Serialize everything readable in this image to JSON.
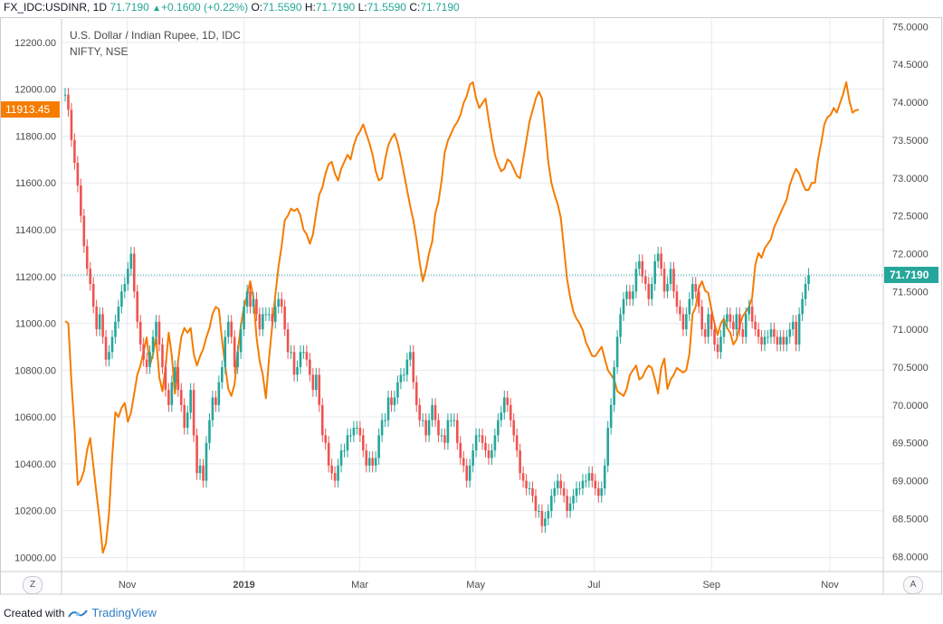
{
  "header": {
    "symbol": "FX_IDC:USDINR, 1D",
    "last": "71.7190",
    "change": "+0.1600 (+0.22%)",
    "o_label": "O:",
    "o_value": "71.5590",
    "h_label": "H:",
    "h_value": "71.7190",
    "l_label": "L:",
    "l_value": "71.5590",
    "c_label": "C:",
    "c_value": "71.7190"
  },
  "footer": {
    "created_with": "Created with",
    "brand": "TradingView"
  },
  "buttons": {
    "left": "Z",
    "right": "A"
  },
  "colors": {
    "up": "#26a69a",
    "down": "#ef5350",
    "overlay": "#f57c00",
    "grid": "#e6eaf0",
    "price_line": "#26a69a"
  },
  "chart_data": {
    "type": "line",
    "title": "U.S. Dollar / Indian Rupee, 1D, IDC",
    "subtitle": "NIFTY, NSE",
    "x_tick_labels": [
      "Nov",
      "2019",
      "Mar",
      "May",
      "Jul",
      "Sep",
      "Nov"
    ],
    "left_axis": {
      "ticks": [
        "12200.00",
        "12000.00",
        "11800.00",
        "11600.00",
        "11400.00",
        "11200.00",
        "11000.00",
        "10800.00",
        "10600.00",
        "10400.00",
        "10200.00",
        "10000.00"
      ],
      "range": [
        9940,
        12300
      ],
      "current_label": "11913.45"
    },
    "right_axis": {
      "ticks": [
        "75.0000",
        "74.5000",
        "74.0000",
        "73.5000",
        "73.0000",
        "72.5000",
        "72.0000",
        "71.5000",
        "71.0000",
        "70.5000",
        "70.0000",
        "69.5000",
        "69.0000",
        "68.5000",
        "68.0000"
      ],
      "range": [
        67.8,
        75.1
      ],
      "current_label": "71.7190"
    },
    "series": [
      {
        "name": "NIFTY, NSE",
        "axis": "left",
        "values": [
          11010,
          11000,
          10750,
          10550,
          10310,
          10330,
          10370,
          10460,
          10510,
          10390,
          10270,
          10160,
          10020,
          10060,
          10190,
          10430,
          10620,
          10600,
          10640,
          10660,
          10580,
          10620,
          10700,
          10780,
          10820,
          10880,
          10940,
          10820,
          10870,
          10940,
          10770,
          10710,
          10810,
          10960,
          10860,
          10700,
          10840,
          10940,
          10980,
          10960,
          10980,
          10870,
          10820,
          10860,
          10890,
          10940,
          10980,
          11040,
          11070,
          11060,
          10930,
          10820,
          10720,
          10690,
          10740,
          10880,
          10990,
          11070,
          11120,
          11180,
          11110,
          10940,
          10840,
          10780,
          10680,
          10850,
          10990,
          11120,
          11240,
          11330,
          11440,
          11460,
          11490,
          11480,
          11490,
          11460,
          11400,
          11380,
          11340,
          11380,
          11470,
          11550,
          11580,
          11640,
          11680,
          11690,
          11640,
          11610,
          11660,
          11690,
          11720,
          11700,
          11760,
          11800,
          11820,
          11850,
          11810,
          11770,
          11720,
          11650,
          11610,
          11620,
          11700,
          11760,
          11790,
          11810,
          11770,
          11710,
          11640,
          11570,
          11500,
          11440,
          11360,
          11260,
          11180,
          11230,
          11300,
          11350,
          11470,
          11520,
          11610,
          11730,
          11780,
          11810,
          11840,
          11860,
          11890,
          11940,
          11970,
          12020,
          12030,
          11960,
          11920,
          11940,
          11960,
          11870,
          11790,
          11720,
          11680,
          11650,
          11660,
          11700,
          11690,
          11660,
          11630,
          11620,
          11700,
          11780,
          11860,
          11910,
          11960,
          11990,
          11960,
          11830,
          11690,
          11600,
          11550,
          11510,
          11450,
          11320,
          11190,
          11110,
          11050,
          11020,
          11000,
          10970,
          10920,
          10890,
          10860,
          10860,
          10880,
          10900,
          10850,
          10800,
          10780,
          10760,
          10710,
          10700,
          10690,
          10720,
          10780,
          10800,
          10820,
          10760,
          10770,
          10800,
          10820,
          10810,
          10760,
          10700,
          10810,
          10850,
          10720,
          10760,
          10780,
          10810,
          10800,
          10790,
          10800,
          10870,
          11040,
          11070,
          11150,
          11180,
          11140,
          11130,
          11060,
          11000,
          10950,
          11000,
          11020,
          10980,
          10960,
          10910,
          10930,
          10990,
          11030,
          11050,
          11070,
          11110,
          11250,
          11300,
          11280,
          11320,
          11340,
          11360,
          11410,
          11440,
          11470,
          11500,
          11530,
          11590,
          11630,
          11660,
          11640,
          11600,
          11570,
          11570,
          11600,
          11600,
          11700,
          11770,
          11850,
          11880,
          11890,
          11920,
          11900,
          11940,
          11980,
          12030,
          11950,
          11900,
          11910,
          11913
        ]
      },
      {
        "name": "U.S. Dollar / Indian Rupee",
        "axis": "right",
        "values": [
          74.1,
          73.9,
          73.5,
          73.2,
          72.9,
          72.5,
          72.1,
          71.8,
          71.6,
          71.3,
          71.0,
          71.2,
          70.9,
          70.6,
          70.7,
          70.9,
          71.1,
          71.3,
          71.5,
          71.6,
          71.8,
          72.0,
          71.5,
          71.1,
          70.8,
          70.6,
          70.5,
          70.7,
          70.9,
          71.1,
          70.8,
          70.5,
          70.2,
          70.0,
          70.3,
          70.5,
          70.2,
          70.0,
          69.7,
          69.9,
          70.2,
          69.6,
          69.1,
          69.2,
          69.0,
          69.5,
          69.8,
          70.1,
          70.0,
          70.3,
          70.5,
          70.9,
          71.1,
          70.9,
          70.5,
          70.7,
          71.0,
          71.3,
          71.5,
          71.3,
          71.4,
          71.2,
          71.0,
          71.2,
          71.2,
          71.2,
          71.1,
          71.3,
          71.4,
          71.3,
          71.0,
          70.7,
          70.7,
          70.4,
          70.5,
          70.7,
          70.7,
          70.6,
          70.4,
          70.2,
          70.4,
          70.0,
          69.6,
          69.5,
          69.2,
          69.1,
          69.0,
          69.2,
          69.4,
          69.4,
          69.6,
          69.6,
          69.7,
          69.7,
          69.6,
          69.4,
          69.2,
          69.3,
          69.2,
          69.3,
          69.6,
          69.8,
          69.8,
          70.1,
          70.0,
          70.1,
          70.3,
          70.4,
          70.4,
          70.6,
          70.7,
          70.3,
          70.0,
          69.8,
          69.8,
          69.6,
          69.8,
          70.0,
          69.8,
          69.6,
          69.6,
          69.5,
          69.8,
          69.8,
          69.8,
          69.5,
          69.3,
          69.2,
          69.0,
          69.2,
          69.4,
          69.6,
          69.6,
          69.5,
          69.4,
          69.3,
          69.4,
          69.6,
          69.8,
          69.9,
          70.1,
          70.0,
          69.8,
          69.6,
          69.4,
          69.1,
          69.0,
          68.9,
          68.9,
          68.8,
          68.6,
          68.6,
          68.4,
          68.5,
          68.6,
          68.8,
          68.9,
          69.0,
          68.9,
          68.8,
          68.6,
          68.7,
          68.8,
          68.9,
          68.9,
          69.0,
          69.0,
          69.1,
          69.0,
          68.9,
          68.8,
          68.9,
          69.2,
          69.7,
          70.0,
          70.5,
          70.9,
          71.2,
          71.4,
          71.5,
          71.4,
          71.5,
          71.8,
          71.9,
          71.7,
          71.6,
          71.4,
          71.6,
          71.9,
          72.0,
          71.8,
          71.5,
          71.6,
          71.8,
          71.5,
          71.3,
          71.2,
          71.0,
          71.2,
          71.4,
          71.6,
          71.5,
          71.3,
          71.0,
          70.9,
          71.2,
          71.0,
          70.8,
          70.7,
          70.9,
          71.1,
          71.2,
          71.1,
          71.0,
          71.2,
          71.0,
          70.9,
          71.2,
          71.3,
          71.1,
          71.0,
          70.9,
          70.8,
          70.9,
          70.9,
          71.0,
          70.9,
          70.8,
          70.9,
          70.8,
          70.9,
          71.0,
          71.1,
          70.8,
          71.2,
          71.4,
          71.6,
          71.72
        ]
      }
    ]
  }
}
